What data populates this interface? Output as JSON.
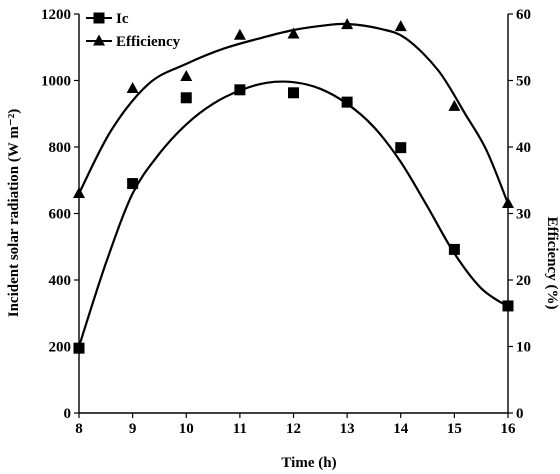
{
  "chart_data": {
    "type": "scatter",
    "xlabel": "Time (h)",
    "ylabel_left": "Incident solar radiation (W m⁻²)",
    "ylabel_right": "Efficiency (%)",
    "xlim": [
      8,
      16
    ],
    "ylim_left": [
      0,
      1200
    ],
    "ylim_right": [
      0,
      60
    ],
    "x_ticks": [
      "8",
      "9",
      "10",
      "11",
      "12",
      "13",
      "14",
      "15",
      "16"
    ],
    "y_ticks_left": [
      "0",
      "200",
      "400",
      "600",
      "800",
      "1000",
      "1200"
    ],
    "y_ticks_right": [
      "0",
      "10",
      "20",
      "30",
      "40",
      "50",
      "60"
    ],
    "legend_position": "top-left",
    "series": [
      {
        "name": "Ic",
        "marker": "square",
        "axis": "left",
        "x": [
          8,
          9,
          10,
          11,
          12,
          13,
          14,
          15,
          16
        ],
        "values": [
          195,
          690,
          948,
          972,
          963,
          935,
          798,
          492,
          322
        ],
        "fit_curve": [
          [
            8,
            200
          ],
          [
            8.5,
            450
          ],
          [
            9,
            660
          ],
          [
            9.5,
            780
          ],
          [
            10,
            868
          ],
          [
            10.5,
            930
          ],
          [
            11,
            970
          ],
          [
            11.5,
            993
          ],
          [
            12,
            995
          ],
          [
            12.5,
            975
          ],
          [
            13,
            930
          ],
          [
            13.5,
            860
          ],
          [
            14,
            755
          ],
          [
            14.5,
            620
          ],
          [
            15,
            480
          ],
          [
            15.5,
            375
          ],
          [
            16,
            320
          ]
        ]
      },
      {
        "name": "Efficiency",
        "marker": "triangle",
        "axis": "right",
        "x": [
          8,
          9,
          10,
          11,
          12,
          13,
          14,
          15,
          16
        ],
        "values": [
          33,
          48.8,
          50.6,
          56.8,
          57,
          58.4,
          58.1,
          46.1,
          31.5
        ],
        "fit_curve": [
          [
            8,
            33
          ],
          [
            8.6,
            42.5
          ],
          [
            9.3,
            49.5
          ],
          [
            10,
            52.5
          ],
          [
            10.7,
            54.8
          ],
          [
            11.4,
            56.4
          ],
          [
            12,
            57.6
          ],
          [
            12.6,
            58.3
          ],
          [
            13,
            58.5
          ],
          [
            13.6,
            57.8
          ],
          [
            14.1,
            56.3
          ],
          [
            14.7,
            51.5
          ],
          [
            15.2,
            45
          ],
          [
            15.6,
            39.5
          ],
          [
            16,
            31.5
          ]
        ]
      }
    ]
  }
}
